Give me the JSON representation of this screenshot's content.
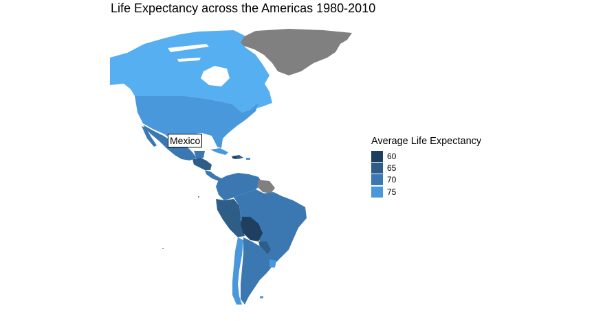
{
  "title": "Life Expectancy across the Americas 1980-2010",
  "legend": {
    "title": "Average Life Expectancy",
    "items": [
      {
        "label": "60",
        "color": "#1f3f60"
      },
      {
        "label": "65",
        "color": "#2e5d88"
      },
      {
        "label": "70",
        "color": "#3b78b2"
      },
      {
        "label": "75",
        "color": "#4a98dc"
      }
    ]
  },
  "annotation": {
    "label": "Mexico"
  },
  "colors": {
    "no_data": "#808080",
    "high": "#56aff0",
    "mid_high": "#4a98dc",
    "mid": "#3b78b2",
    "mid_low": "#2e5d88",
    "low": "#1f3f60"
  }
}
